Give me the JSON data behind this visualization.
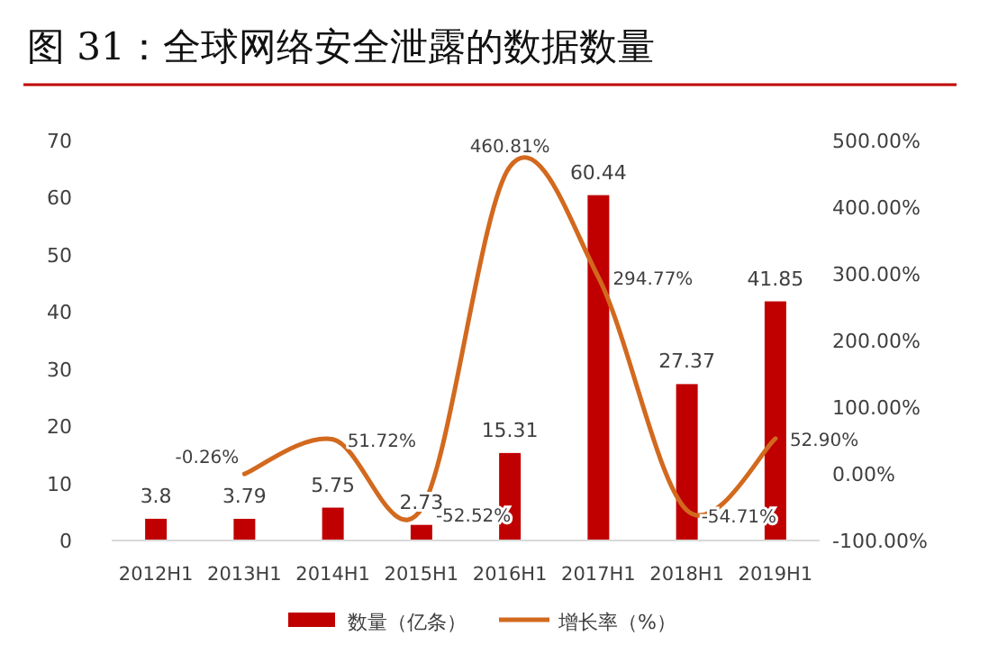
{
  "chart_data": {
    "type": "bar",
    "title": "图 31：全球网络安全泄露的数据数量",
    "categories": [
      "2012H1",
      "2013H1",
      "2014H1",
      "2015H1",
      "2016H1",
      "2017H1",
      "2018H1",
      "2019H1"
    ],
    "series": [
      {
        "name": "数量（亿条）",
        "color": "#c00000",
        "values": [
          3.8,
          3.79,
          5.75,
          2.73,
          15.31,
          60.44,
          27.37,
          41.85
        ],
        "value_labels": [
          "3.8",
          "3.79",
          "5.75",
          "2.73",
          "15.31",
          "60.44",
          "27.37",
          "41.85"
        ]
      },
      {
        "name": "增长率（%）",
        "type": "line",
        "axis": "y2",
        "color": "#d2691e",
        "values": [
          null,
          -0.26,
          51.72,
          -52.52,
          460.81,
          294.77,
          -54.71,
          52.9
        ],
        "value_labels": [
          null,
          "-0.26%",
          "51.72%",
          "-52.52%",
          "460.81%",
          "294.77%",
          "-54.71%",
          "52.90%"
        ]
      }
    ],
    "ylim": [
      0,
      70
    ],
    "yticks": [
      0,
      10,
      20,
      30,
      40,
      50,
      60,
      70
    ],
    "y2lim": [
      -100,
      500
    ],
    "y2ticks": [
      {
        "value": -100,
        "label": "-100.00%"
      },
      {
        "value": 0,
        "label": "0.00%"
      },
      {
        "value": 100,
        "label": "100.00%"
      },
      {
        "value": 200,
        "label": "200.00%"
      },
      {
        "value": 300,
        "label": "300.00%"
      },
      {
        "value": 400,
        "label": "400.00%"
      },
      {
        "value": 500,
        "label": "500.00%"
      }
    ],
    "legend": "bottom",
    "grid": false
  }
}
